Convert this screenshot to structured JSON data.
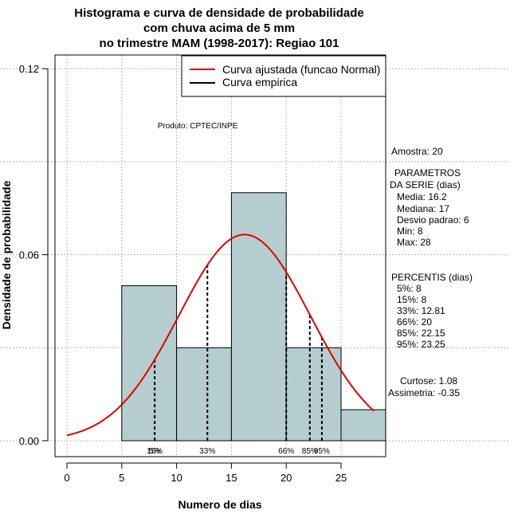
{
  "chart_data": {
    "type": "bar",
    "title": [
      "Histograma e curva de densidade de probabilidade",
      "com chuva acima de 5 mm",
      "no trimestre MAM (1998-2017): Regiao 101"
    ],
    "xlabel": "Numero de dias",
    "ylabel": "Densidade de probabilidade",
    "xlim": [
      -1,
      29
    ],
    "ylim": [
      -0.005,
      0.125
    ],
    "x_ticks": [
      0,
      5,
      10,
      15,
      20,
      25
    ],
    "x_tick_labels": [
      "0",
      "5",
      "10",
      "15",
      "20",
      "25"
    ],
    "y_ticks": [
      0.0,
      0.06,
      0.12
    ],
    "y_tick_labels": [
      "0.00",
      "0.06",
      "0.12"
    ],
    "grid": true,
    "bins": [
      {
        "start": 5,
        "end": 10,
        "density": 0.05
      },
      {
        "start": 10,
        "end": 15,
        "density": 0.03
      },
      {
        "start": 15,
        "end": 20,
        "density": 0.08
      },
      {
        "start": 20,
        "end": 25,
        "density": 0.03
      },
      {
        "start": 25,
        "end": 30,
        "density": 0.01
      }
    ],
    "bar_color": "#b5cdce",
    "normal_fit": {
      "mean": 16.2,
      "sd": 6,
      "from": 0,
      "to": 28,
      "color": "#e00000"
    },
    "percentile_lines": [
      {
        "x": 8,
        "label": "5%"
      },
      {
        "x": 8,
        "label": "15%"
      },
      {
        "x": 12.81,
        "label": "33%"
      },
      {
        "x": 20,
        "label": "66%"
      },
      {
        "x": 22.15,
        "label": "85%"
      },
      {
        "x": 23.25,
        "label": "95%"
      }
    ],
    "legend": {
      "position": "top-right",
      "entries": [
        {
          "label": "Curva ajustada (funcao Normal)",
          "color": "#e00000"
        },
        {
          "label": "Curva empirica",
          "color": "#000000"
        }
      ]
    },
    "annotation": "Produto: CPTEC/INPE"
  },
  "stats_panel": {
    "amostra": "Amostra: 20",
    "params_header_1": "PARAMETROS",
    "params_header_2": "DA SERIE (dias)",
    "media": "Media: 16.2",
    "mediana": "Mediana: 17",
    "desvio": "Desvio padrao: 6",
    "min": "Min: 8",
    "max": "Max: 28",
    "percentis_header": "PERCENTIS (dias)",
    "p5": "5%: 8",
    "p15": "15%: 8",
    "p33": "33%: 12.81",
    "p66": "66%: 20",
    "p85": "85%: 22.15",
    "p95": "95%: 23.25",
    "curtose": "Curtose: 1.08",
    "assimetria": "Assimetria: -0.35"
  }
}
